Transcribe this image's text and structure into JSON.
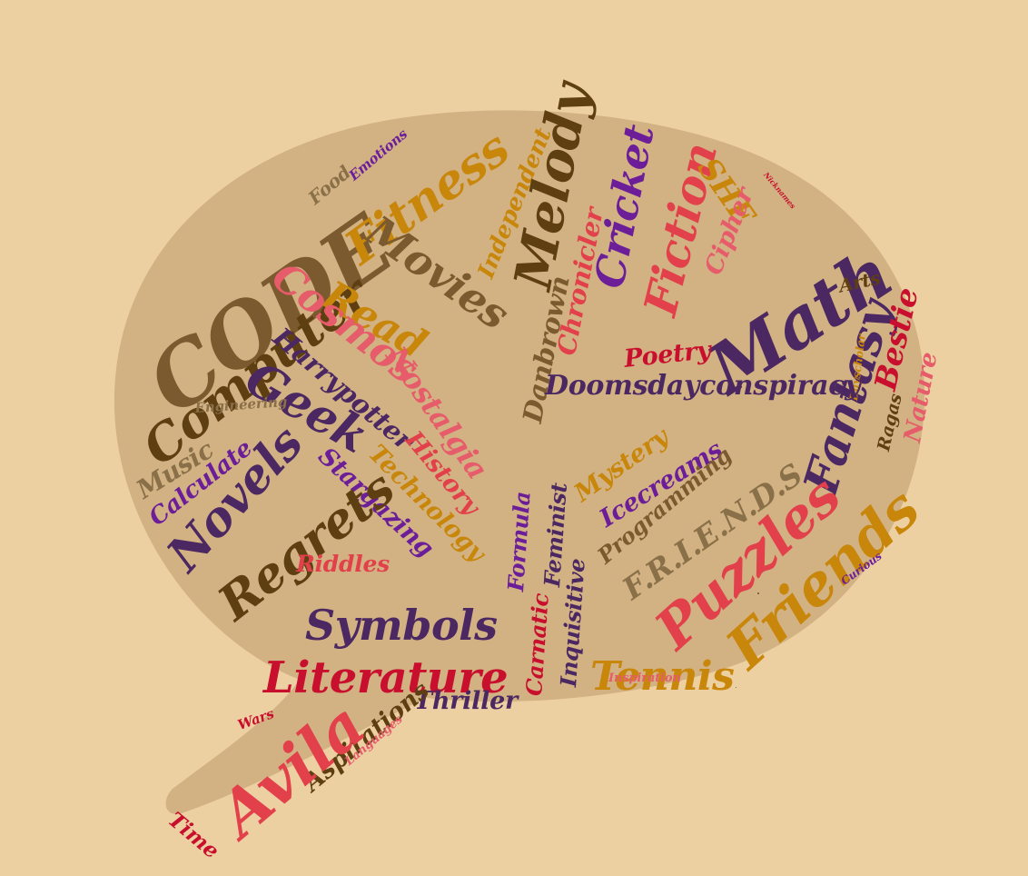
{
  "palette": {
    "background": "#EDD0A2",
    "bubble": "#D2B283",
    "brown": "#7A5A2E",
    "dark_brown": "#5E3F12",
    "purple": "#4B2862",
    "violet": "#6C1E99",
    "red": "#C8102E",
    "coral": "#E2404A",
    "pink": "#E65C6A",
    "orange": "#C8860A",
    "olive": "#8A7048"
  },
  "words": [
    {
      "text": "CODE",
      "color": "#7A5A2E",
      "icon": "word-code"
    },
    {
      "text": "Computer",
      "color": "#5E3F12",
      "icon": "word-computer"
    },
    {
      "text": "Fitness",
      "color": "#C8860A",
      "icon": "word-fitness"
    },
    {
      "text": "Food",
      "color": "#8A7048",
      "icon": "word-food"
    },
    {
      "text": "Emotions",
      "color": "#6C1E99",
      "icon": "word-emotions"
    },
    {
      "text": "Movies",
      "color": "#7A5A2E",
      "icon": "word-movies"
    },
    {
      "text": "Read",
      "color": "#C8860A",
      "icon": "word-read"
    },
    {
      "text": "Cosmos",
      "color": "#E65C6A",
      "icon": "word-cosmos"
    },
    {
      "text": "Independent",
      "color": "#C8860A",
      "icon": "word-independent"
    },
    {
      "text": "Melody",
      "color": "#5E3F12",
      "icon": "word-melody"
    },
    {
      "text": "Cricket",
      "color": "#6C1E99",
      "icon": "word-cricket"
    },
    {
      "text": "Fiction",
      "color": "#E2404A",
      "icon": "word-fiction"
    },
    {
      "text": "SHE",
      "color": "#C8860A",
      "icon": "word-she"
    },
    {
      "text": "Nicknames",
      "color": "#C8102E",
      "icon": "word-nicknames"
    },
    {
      "text": "Cipher",
      "color": "#E65C6A",
      "icon": "word-cipher"
    },
    {
      "text": "Math",
      "color": "#4B2862",
      "icon": "word-math"
    },
    {
      "text": "Arts",
      "color": "#5E3F12",
      "icon": "word-arts"
    },
    {
      "text": "Harrypotter",
      "color": "#4B2862",
      "icon": "word-harrypotter"
    },
    {
      "text": "Nostalgia",
      "color": "#E65C6A",
      "icon": "word-nostalgia"
    },
    {
      "text": "Chronicler",
      "color": "#E2404A",
      "icon": "word-chronicler"
    },
    {
      "text": "Danbrown",
      "color": "#7A5A2E",
      "icon": "word-danbrown"
    },
    {
      "text": "Poetry",
      "color": "#C8102E",
      "icon": "word-poetry"
    },
    {
      "text": "Geek",
      "color": "#4B2862",
      "icon": "word-geek"
    },
    {
      "text": "Fantasy",
      "color": "#4B2862",
      "icon": "word-fantasy"
    },
    {
      "text": "Bestie",
      "color": "#C8102E",
      "icon": "word-bestie"
    },
    {
      "text": "Dayscholar",
      "color": "#C8860A",
      "icon": "word-dayscholar"
    },
    {
      "text": "Nature",
      "color": "#E65C6A",
      "icon": "word-nature"
    },
    {
      "text": "Ragas",
      "color": "#5E3F12",
      "icon": "word-ragas"
    },
    {
      "text": "Doomsdayconspiracy",
      "color": "#4B2862",
      "icon": "word-doomsdayconspiracy"
    },
    {
      "text": "Engineering",
      "color": "#8A7048",
      "icon": "word-engineering"
    },
    {
      "text": "Music",
      "color": "#8A7048",
      "icon": "word-music"
    },
    {
      "text": "Calculate",
      "color": "#6C1E99",
      "icon": "word-calculate"
    },
    {
      "text": "Novels",
      "color": "#4B2862",
      "icon": "word-novels"
    },
    {
      "text": "Stargazing",
      "color": "#6C1E99",
      "icon": "word-stargazing"
    },
    {
      "text": "History",
      "color": "#E2404A",
      "icon": "word-history"
    },
    {
      "text": "Technology",
      "color": "#C8860A",
      "icon": "word-technology"
    },
    {
      "text": "Mystery",
      "color": "#C8860A",
      "icon": "word-mystery"
    },
    {
      "text": "Icecreams",
      "color": "#6C1E99",
      "icon": "word-icecreams"
    },
    {
      "text": "Programming",
      "color": "#7A5A2E",
      "icon": "word-programming"
    },
    {
      "text": "F.R.I.E.N.D.S",
      "color": "#8A7048",
      "icon": "word-friends-show"
    },
    {
      "text": "Friends",
      "color": "#C8860A",
      "icon": "word-friends"
    },
    {
      "text": "Curious",
      "color": "#6C1E99",
      "icon": "word-curious"
    },
    {
      "text": "Regrets",
      "color": "#5E3F12",
      "icon": "word-regrets"
    },
    {
      "text": "Riddles",
      "color": "#E2404A",
      "icon": "word-riddles"
    },
    {
      "text": "Formula",
      "color": "#6C1E99",
      "icon": "word-formula"
    },
    {
      "text": "Feminist",
      "color": "#4B2862",
      "icon": "word-feminist"
    },
    {
      "text": "Puzzles",
      "color": "#E2404A",
      "icon": "word-puzzles"
    },
    {
      "text": "Symbols",
      "color": "#4B2862",
      "icon": "word-symbols"
    },
    {
      "text": "Inquisitive",
      "color": "#4B2862",
      "icon": "word-inquisitive"
    },
    {
      "text": "Carnatic",
      "color": "#C8102E",
      "icon": "word-carnatic"
    },
    {
      "text": "Literature",
      "color": "#C8102E",
      "icon": "word-literature"
    },
    {
      "text": "Tennis",
      "color": "#C8860A",
      "icon": "word-tennis"
    },
    {
      "text": "Inspiration",
      "color": "#E65C6A",
      "icon": "word-inspiration"
    },
    {
      "text": "Thriller",
      "color": "#4B2862",
      "icon": "word-thriller"
    },
    {
      "text": "Aspirations",
      "color": "#5E3F12",
      "icon": "word-aspirations"
    },
    {
      "text": "Avila",
      "color": "#E2404A",
      "icon": "word-avila"
    },
    {
      "text": "Wars",
      "color": "#C8102E",
      "icon": "word-wars"
    },
    {
      "text": "Languages",
      "color": "#E65C6A",
      "icon": "word-languages"
    },
    {
      "text": "Time",
      "color": "#C8102E",
      "icon": "word-time"
    }
  ]
}
